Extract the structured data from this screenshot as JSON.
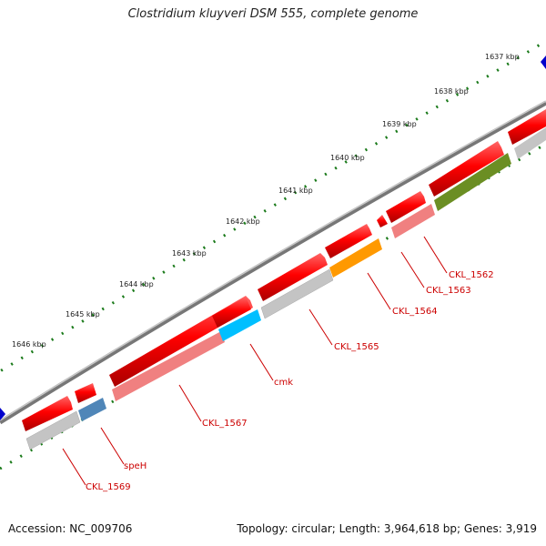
{
  "title": "Clostridium kluyveri DSM 555, complete genome",
  "footer": {
    "accession": "Accession: NC_009706",
    "summary": "Topology: circular; Length: 3,964,618 bp; Genes: 3,919"
  },
  "colors": {
    "cds_forward": "#ff0000",
    "cds_reverse": "#cccccc",
    "pink": "#f08080",
    "orange": "#ff9900",
    "cyan": "#00bfff",
    "steelblue": "#4f86b8",
    "olive": "#6b8e23",
    "backbone": "#888888",
    "ticks": "#1a7a1a",
    "arrow_marker": "#0000cc",
    "label": "#cc0000"
  },
  "kbp_labels": [
    "1637 kbp",
    "1638 kbp",
    "1639 kbp",
    "1640 kbp",
    "1641 kbp",
    "1642 kbp",
    "1643 kbp",
    "1644 kbp",
    "1645 kbp",
    "1646 kbp"
  ],
  "gene_labels": [
    "CKL_1562",
    "CKL_1563",
    "CKL_1564",
    "CKL_1565",
    "cmk",
    "CKL_1567",
    "speH",
    "CKL_1569"
  ]
}
